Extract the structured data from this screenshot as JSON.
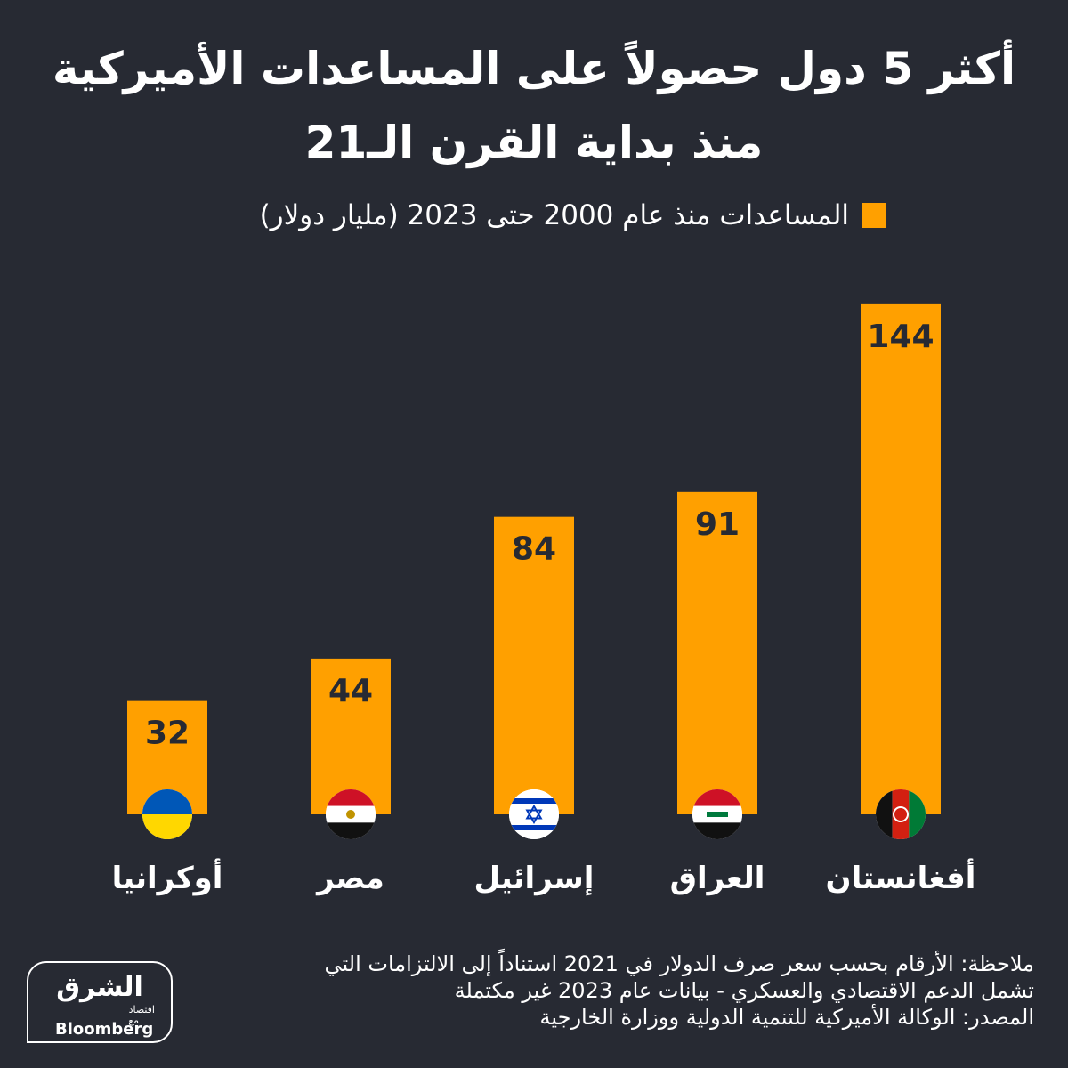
{
  "header": {
    "title_line1": "أكثر 5 دول حصولاً على المساعدات الأميركية",
    "title_line2": "منذ بداية القرن الـ21"
  },
  "colors": {
    "background": "#272a33",
    "bar": "#ffa000",
    "value_text": "#272a33",
    "text": "#ffffff"
  },
  "chart_data": {
    "type": "bar",
    "categories": [
      "أفغانستان",
      "العراق",
      "إسرائيل",
      "مصر",
      "أوكرانيا"
    ],
    "series": [
      {
        "name": "المساعدات منذ عام 2000 حتى 2023 (مليار دولار)",
        "values": [
          144,
          91,
          84,
          44,
          32
        ]
      }
    ],
    "category_order": "right-to-left",
    "data_labels": true,
    "legend_position": "top",
    "grid": false,
    "flags": [
      "afghanistan-flag-icon",
      "iraq-flag-icon",
      "israel-flag-icon",
      "egypt-flag-icon",
      "ukraine-flag-icon"
    ]
  },
  "footnote": {
    "note_line1": "ملاحظة: الأرقام بحسب سعر صرف الدولار في 2021 استناداً إلى الالتزامات التي",
    "note_line2": "تشمل الدعم الاقتصادي والعسكري - بيانات عام 2023 غير مكتملة",
    "source": "المصدر: الوكالة الأميركية للتنمية الدولية ووزارة الخارجية"
  },
  "logo": {
    "main": "الشرق",
    "sub": "اقتصاد",
    "with": "مع",
    "bloomberg": "Bloomberg"
  }
}
